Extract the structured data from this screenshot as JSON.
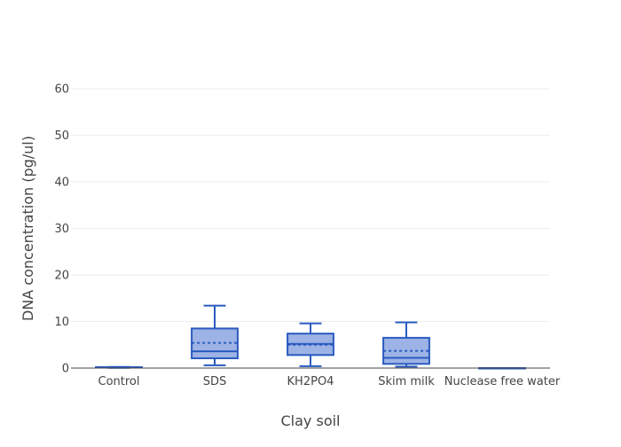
{
  "chart_data": {
    "type": "box",
    "xlabel": "Clay soil",
    "ylabel": "DNA concentration (pg/ul)",
    "ylim": [
      0,
      60
    ],
    "yticks": [
      0,
      10,
      20,
      30,
      40,
      50,
      60
    ],
    "grid": true,
    "legend": "none",
    "colors": {
      "box_fill": "#9db3e6",
      "box_line": "#2a5bbf",
      "grid": "#eeeeee",
      "zeroline": "#444444",
      "text": "#444444"
    },
    "categories": [
      "Control",
      "SDS",
      "KH2PO4",
      "Skim milk",
      "Nuclease free water"
    ],
    "boxes": [
      {
        "category": "Control",
        "min": 0.05,
        "q1": 0.1,
        "median": 0.15,
        "q3": 0.2,
        "max": 0.25,
        "mean": 0.15
      },
      {
        "category": "SDS",
        "min": 0.6,
        "q1": 2.1,
        "median": 3.6,
        "q3": 8.5,
        "max": 13.4,
        "mean": 5.4
      },
      {
        "category": "KH2PO4",
        "min": 0.4,
        "q1": 2.8,
        "median": 5.2,
        "q3": 7.4,
        "max": 9.6,
        "mean": 5.0
      },
      {
        "category": "Skim milk",
        "min": 0.3,
        "q1": 0.9,
        "median": 2.2,
        "q3": 6.5,
        "max": 9.8,
        "mean": 3.7
      },
      {
        "category": "Nuclease free water",
        "min": 0.0,
        "q1": 0.0,
        "median": 0.0,
        "q3": 0.0,
        "max": 0.0,
        "mean": 0.0
      }
    ]
  }
}
